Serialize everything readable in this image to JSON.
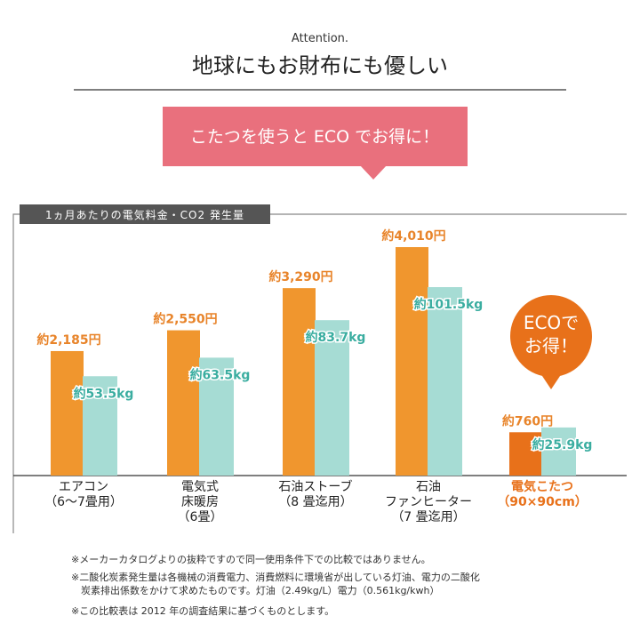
{
  "header": {
    "kicker": "Attention.",
    "title": "地球にもお財布にも優しい",
    "banner": "こたつを使うと ECO でお得に！"
  },
  "chart_data": {
    "type": "bar",
    "title": "1ヵ月あたりの電気料金・CO2 発生量",
    "categories": [
      "エアコン\n（6〜7畳用）",
      "電気式\n床暖房\n（6畳）",
      "石油ストーブ\n（8 畳迄用）",
      "石油\nファンヒーター\n（7 畳迄用）",
      "電気こたつ\n（90×90cm）"
    ],
    "category_colors": [
      "#222222",
      "#222222",
      "#222222",
      "#222222",
      "#e8711a"
    ],
    "series": [
      {
        "values": [
          2185,
          2550,
          3290,
          4010,
          760
        ],
        "value_labels": [
          "約2,185円",
          "約2,550円",
          "約3,290円",
          "約4,010円",
          "約760円"
        ],
        "color": "#f0962e",
        "colors": [
          "#f0962e",
          "#f0962e",
          "#f0962e",
          "#f0962e",
          "#e8711a"
        ],
        "label_color": "#e8842a"
      },
      {
        "values": [
          53.5,
          63.5,
          83.7,
          101.5,
          25.9
        ],
        "value_labels": [
          "約53.5kg",
          "約63.5kg",
          "約83.7kg",
          "約101.5kg",
          "約25.9kg"
        ],
        "color": "#a6dcd4",
        "colors": [
          "#a6dcd4",
          "#a6dcd4",
          "#a6dcd4",
          "#a6dcd4",
          "#a6dcd4"
        ],
        "label_color": "#3aada0"
      }
    ],
    "badge": "ECOで\nお得！"
  },
  "notes": [
    "※メーカーカタログよりの抜粋ですので同一使用条件下での比較ではありません。",
    "※二酸化炭素発生量は各機械の消費電力、消費燃料に環境省が出している灯油、電力の二酸化\n　炭素排出係数をかけて求めたものです。灯油（2.49kg/L）電力（0.561kg/kwh）",
    "※この比較表は 2012 年の調査結果に基づくものとします。"
  ]
}
